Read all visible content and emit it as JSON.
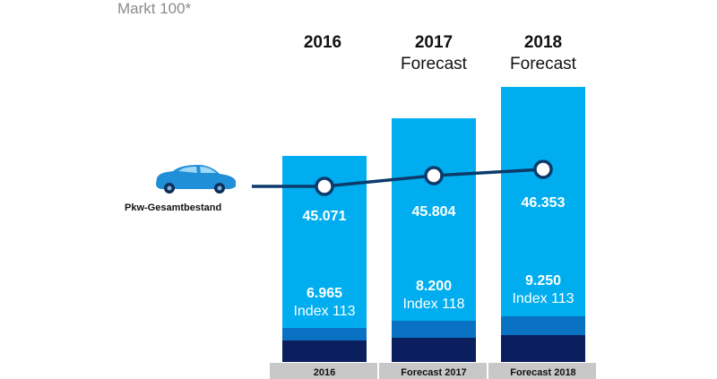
{
  "header": {
    "note": "Markt 100*"
  },
  "columns": [
    {
      "year": "2016",
      "sub": ""
    },
    {
      "year": "2017",
      "sub": "Forecast"
    },
    {
      "year": "2018",
      "sub": "Forecast"
    }
  ],
  "car": {
    "label": "Pkw-Gesamtbestand",
    "icon": "car-icon"
  },
  "chart_data": {
    "type": "bar",
    "categories": [
      "2016",
      "Forecast 2017",
      "Forecast 2018"
    ],
    "line_values": [
      "45.071",
      "45.804",
      "46.353"
    ],
    "bar_values": [
      "6.965",
      "8.200",
      "9.250"
    ],
    "bar_index": [
      "Index 113",
      "Index 118",
      "Index 113"
    ],
    "grid": false,
    "legend": "none"
  },
  "colors": {
    "bar": "#00aeef",
    "mid_band": "#0a72c2",
    "dark_band": "#0b1f5e",
    "line": "#0b3a6b",
    "category_strip": "#c8c8c8",
    "car": "#1f8fd8"
  }
}
